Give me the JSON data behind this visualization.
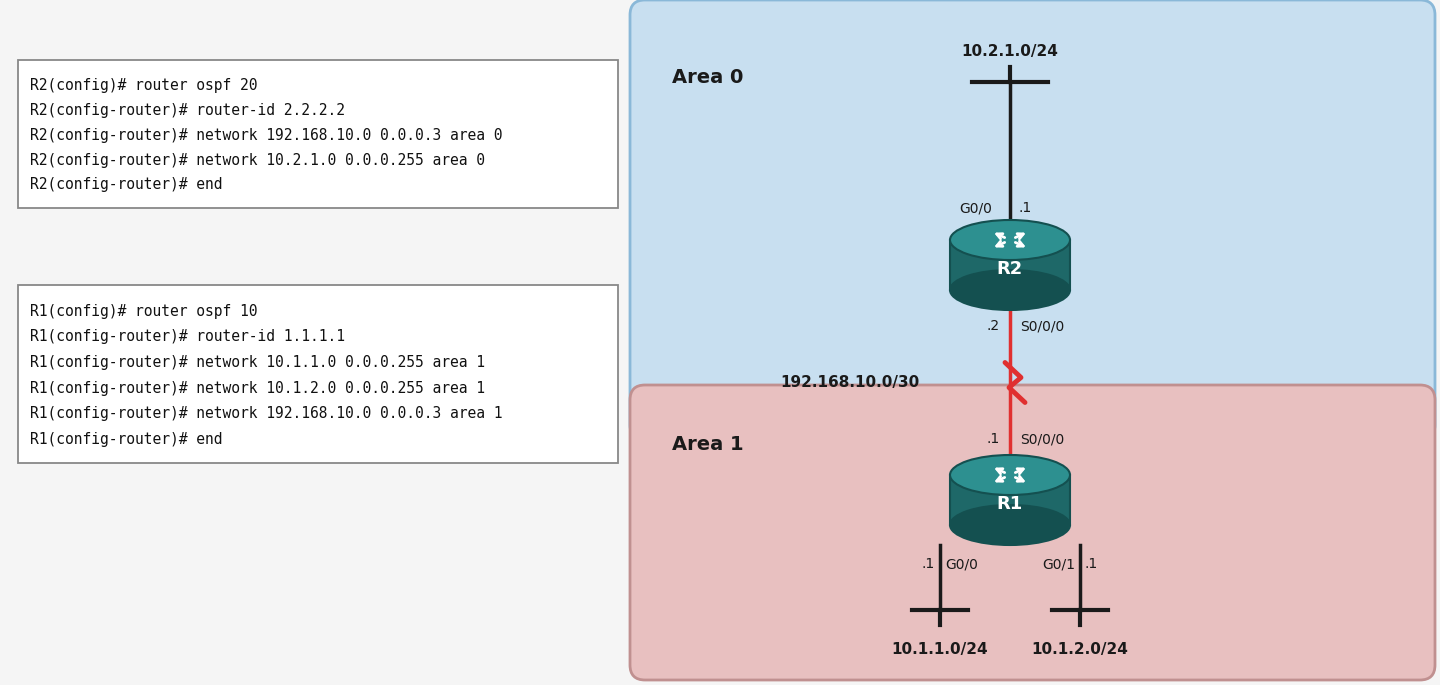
{
  "bg_color": "#f5f5f5",
  "fig_width": 14.4,
  "fig_height": 6.85,
  "r2_lines": [
    "R2(config)# router ospf 20",
    "R2(config-router)# router-id 2.2.2.2",
    "R2(config-router)# network 192.168.10.0 0.0.0.3 area 0",
    "R2(config-router)# network 10.2.1.0 0.0.0.255 area 0",
    "R2(config-router)# end"
  ],
  "r1_lines": [
    "R1(config)# router ospf 10",
    "R1(config-router)# router-id 1.1.1.1",
    "R1(config-router)# network 10.1.1.0 0.0.0.255 area 1",
    "R1(config-router)# network 10.1.2.0 0.0.0.255 area 1",
    "R1(config-router)# network 192.168.10.0 0.0.0.3 area 1",
    "R1(config-router)# end"
  ],
  "area0_color": "#c8dff0",
  "area0_edge": "#8ab8d8",
  "area1_color": "#e8c0c0",
  "area1_edge": "#c09090",
  "router_top_color": "#2d9090",
  "router_side_color": "#1e6868",
  "router_dark_color": "#145050",
  "link_serial_color": "#e03030",
  "link_eth_color": "#1a1a1a",
  "text_color": "#1a1a1a",
  "box_edge": "#888888",
  "area0_label": "Area 0",
  "area1_label": "Area 1",
  "r2_label": "R2",
  "r1_label": "R1",
  "net_top": "10.2.1.0/24",
  "net_serial": "192.168.10.0/30",
  "net_left": "10.1.1.0/24",
  "net_right": "10.1.2.0/24",
  "lbl_g00": "G0/0",
  "lbl_g01": "G0/1",
  "lbl_s000": "S0/0/0",
  "lbl_dot2": ".2",
  "lbl_dot1": ".1"
}
